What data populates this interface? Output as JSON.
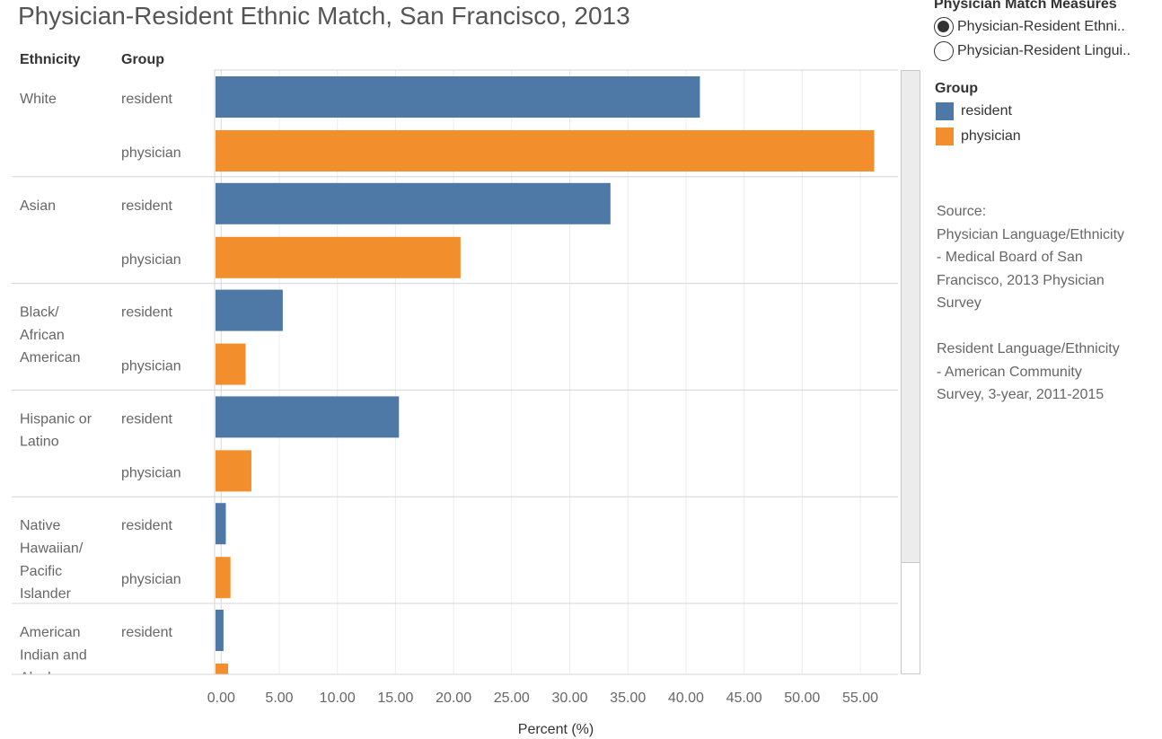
{
  "title": "Physician-Resident Ethnic Match, San Francisco, 2013",
  "headers": {
    "ethnicity": "Ethnicity",
    "group": "Group"
  },
  "parameter": {
    "title": "Physician Match Measures",
    "options": [
      {
        "label": "Physician-Resident Ethni..",
        "selected": true
      },
      {
        "label": "Physician-Resident Lingui..",
        "selected": false
      }
    ]
  },
  "legend": {
    "title": "Group",
    "items": [
      {
        "label": "resident",
        "color": "#4e79a7"
      },
      {
        "label": "physician",
        "color": "#f28e2b"
      }
    ]
  },
  "source": {
    "lines": [
      "Source:",
      "Physician Language/Ethnicity",
      "- Medical Board of San",
      "Francisco, 2013 Physician",
      "Survey",
      "",
      "Resident Language/Ethnicity",
      "- American Community",
      "Survey, 3-year, 2011-2015"
    ]
  },
  "chart_data": {
    "type": "bar",
    "orientation": "horizontal",
    "xlabel": "Percent (%)",
    "xlim": [
      -0.5,
      59
    ],
    "x_ticks": [
      "0.00",
      "5.00",
      "10.00",
      "15.00",
      "20.00",
      "25.00",
      "30.00",
      "35.00",
      "40.00",
      "45.00",
      "50.00",
      "55.00"
    ],
    "grid": true,
    "categories": [
      {
        "label": "White",
        "label_lines": [
          "White"
        ],
        "resident": 41.2,
        "physician": 56.2
      },
      {
        "label": "Asian",
        "label_lines": [
          "Asian"
        ],
        "resident": 33.5,
        "physician": 20.6
      },
      {
        "label": "Black/ African American",
        "label_lines": [
          "Black/",
          "African",
          "American"
        ],
        "resident": 5.3,
        "physician": 2.1
      },
      {
        "label": "Hispanic or Latino",
        "label_lines": [
          "Hispanic or",
          "Latino"
        ],
        "resident": 15.3,
        "physician": 2.6
      },
      {
        "label": "Native Hawaiian/ Pacific Islander",
        "label_lines": [
          "Native",
          "Hawaiian/",
          "Pacific",
          "Islander"
        ],
        "resident": 0.4,
        "physician": 0.8
      },
      {
        "label": "American Indian and Alaskan",
        "label_lines": [
          "American",
          "Indian and",
          "Alaskan"
        ],
        "resident": 0.2,
        "physician": 0.6
      }
    ],
    "series": [
      {
        "name": "resident",
        "color": "#4e79a7"
      },
      {
        "name": "physician",
        "color": "#f28e2b"
      }
    ]
  }
}
